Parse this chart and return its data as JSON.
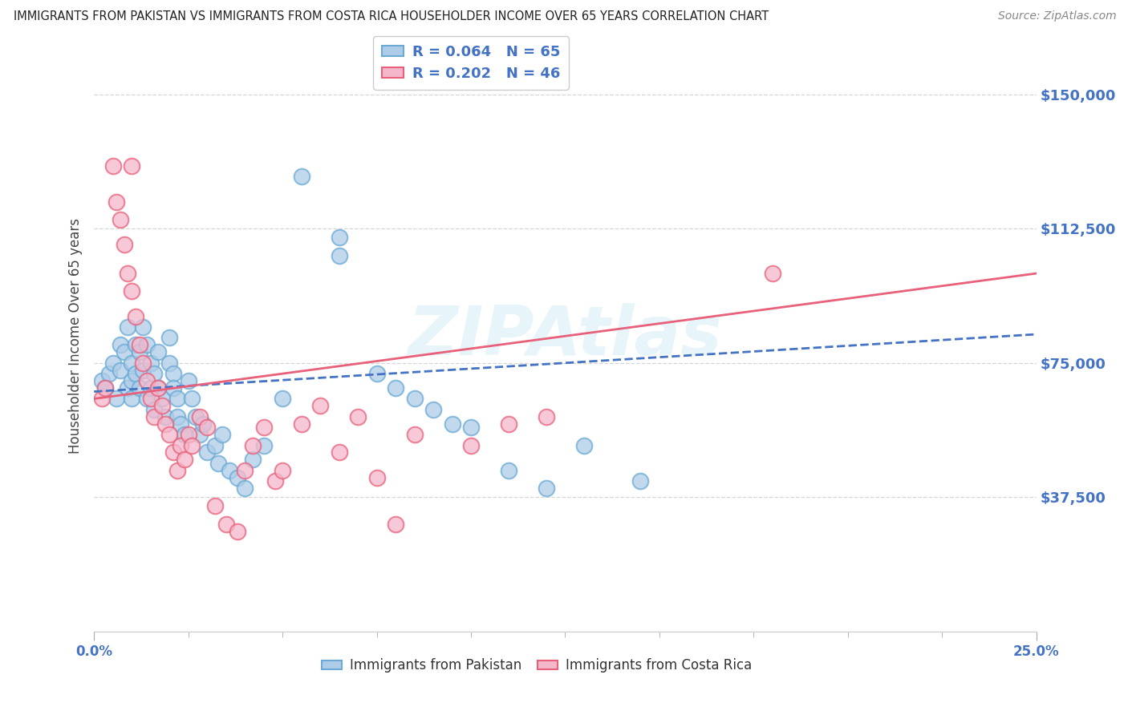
{
  "title": "IMMIGRANTS FROM PAKISTAN VS IMMIGRANTS FROM COSTA RICA HOUSEHOLDER INCOME OVER 65 YEARS CORRELATION CHART",
  "source": "Source: ZipAtlas.com",
  "ylabel": "Householder Income Over 65 years",
  "ytick_vals": [
    0,
    37500,
    75000,
    112500,
    150000
  ],
  "ytick_labels": [
    "",
    "$37,500",
    "$75,000",
    "$112,500",
    "$150,000"
  ],
  "xmin": 0.0,
  "xmax": 25.0,
  "ymin": 0,
  "ymax": 165000,
  "pakistan_R": "0.064",
  "pakistan_N": 65,
  "costarica_R": "0.202",
  "costarica_N": 46,
  "pakistan_color": "#aecce8",
  "pakistan_edge": "#6aaad4",
  "costarica_color": "#f5b8cb",
  "costarica_edge": "#e8607a",
  "pakistan_line_color": "#4472c4",
  "costarica_line_color": "#e8607a",
  "legend_label1": "Immigrants from Pakistan",
  "legend_label2": "Immigrants from Costa Rica",
  "pakistan_scatter_x": [
    0.2,
    0.3,
    0.4,
    0.5,
    0.6,
    0.7,
    0.7,
    0.8,
    0.9,
    0.9,
    1.0,
    1.0,
    1.0,
    1.1,
    1.1,
    1.2,
    1.2,
    1.3,
    1.3,
    1.4,
    1.4,
    1.5,
    1.5,
    1.6,
    1.6,
    1.7,
    1.7,
    1.8,
    1.9,
    2.0,
    2.0,
    2.1,
    2.1,
    2.2,
    2.2,
    2.3,
    2.4,
    2.5,
    2.6,
    2.7,
    2.8,
    2.9,
    3.0,
    3.2,
    3.3,
    3.4,
    3.6,
    3.8,
    4.0,
    4.2,
    4.5,
    5.0,
    5.5,
    6.5,
    6.5,
    7.5,
    8.0,
    8.5,
    9.0,
    9.5,
    10.0,
    11.0,
    12.0,
    13.0,
    14.5
  ],
  "pakistan_scatter_y": [
    70000,
    68000,
    72000,
    75000,
    65000,
    80000,
    73000,
    78000,
    85000,
    68000,
    75000,
    70000,
    65000,
    80000,
    72000,
    78000,
    68000,
    85000,
    73000,
    80000,
    65000,
    75000,
    68000,
    72000,
    62000,
    78000,
    68000,
    65000,
    60000,
    82000,
    75000,
    72000,
    68000,
    65000,
    60000,
    58000,
    55000,
    70000,
    65000,
    60000,
    55000,
    58000,
    50000,
    52000,
    47000,
    55000,
    45000,
    43000,
    40000,
    48000,
    52000,
    65000,
    127000,
    105000,
    110000,
    72000,
    68000,
    65000,
    62000,
    58000,
    57000,
    45000,
    40000,
    52000,
    42000
  ],
  "costarica_scatter_x": [
    0.2,
    0.3,
    0.5,
    0.6,
    0.7,
    0.8,
    0.9,
    1.0,
    1.0,
    1.1,
    1.2,
    1.3,
    1.4,
    1.5,
    1.6,
    1.7,
    1.8,
    1.9,
    2.0,
    2.1,
    2.2,
    2.3,
    2.4,
    2.5,
    2.6,
    2.8,
    3.0,
    3.2,
    3.5,
    3.8,
    4.0,
    4.2,
    4.5,
    4.8,
    5.0,
    5.5,
    6.0,
    6.5,
    7.0,
    7.5,
    8.0,
    8.5,
    10.0,
    11.0,
    12.0,
    18.0
  ],
  "costarica_scatter_y": [
    65000,
    68000,
    130000,
    120000,
    115000,
    108000,
    100000,
    95000,
    130000,
    88000,
    80000,
    75000,
    70000,
    65000,
    60000,
    68000,
    63000,
    58000,
    55000,
    50000,
    45000,
    52000,
    48000,
    55000,
    52000,
    60000,
    57000,
    35000,
    30000,
    28000,
    45000,
    52000,
    57000,
    42000,
    45000,
    58000,
    63000,
    50000,
    60000,
    43000,
    30000,
    55000,
    52000,
    58000,
    60000,
    100000
  ]
}
